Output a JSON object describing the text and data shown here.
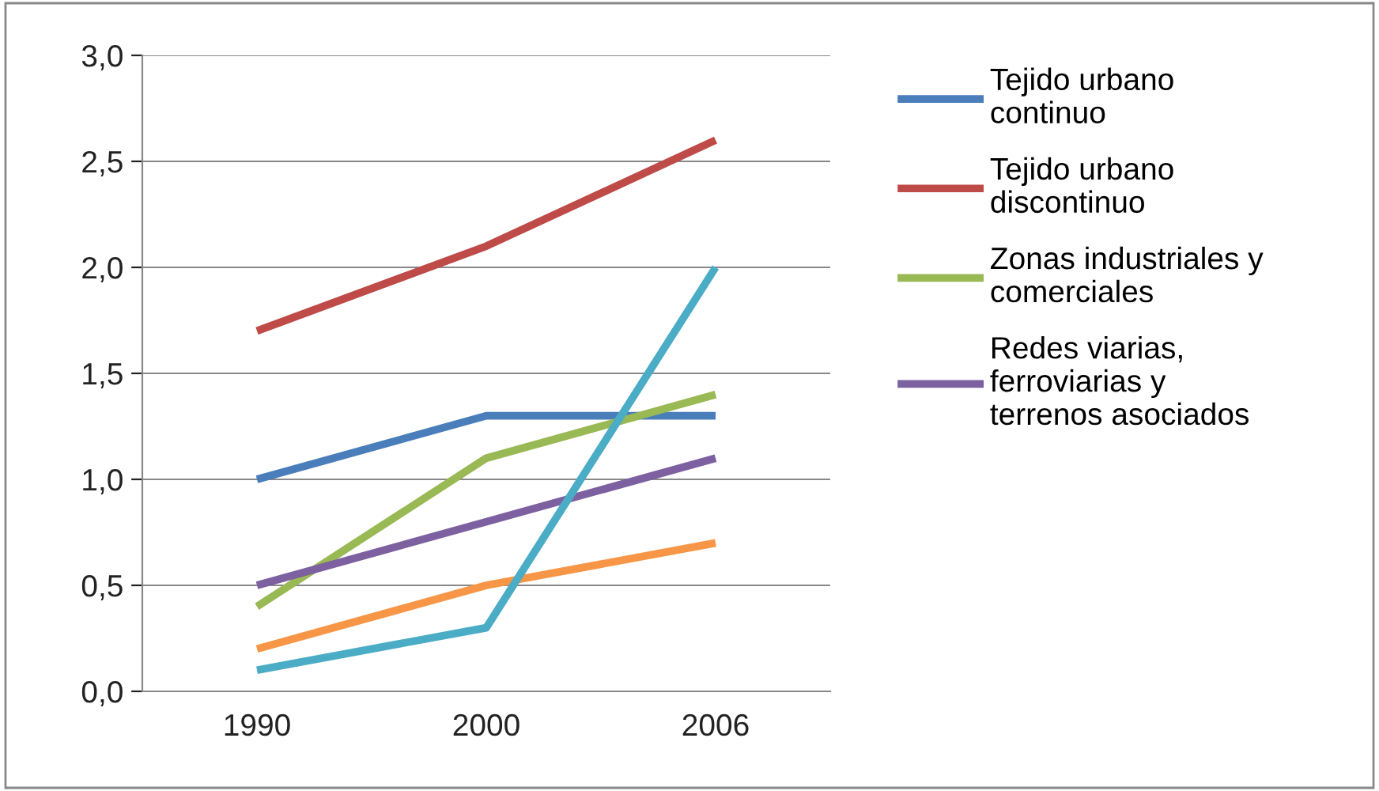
{
  "chart_data": {
    "type": "line",
    "categories": [
      "1990",
      "2000",
      "2006"
    ],
    "series": [
      {
        "name": "Tejido urbano\ncontinuo",
        "color": "#4a7ebb",
        "values": [
          1.0,
          1.3,
          1.3
        ]
      },
      {
        "name": "Tejido urbano\ndiscontinuo",
        "color": "#be4b48",
        "values": [
          1.7,
          2.1,
          2.6
        ]
      },
      {
        "name": "Zonas industriales y\ncomerciales",
        "color": "#98b954",
        "values": [
          0.4,
          1.1,
          1.4
        ]
      },
      {
        "name": "Redes viarias,\nferroviarias y\nterrenos asociados",
        "color": "#7d60a0",
        "values": [
          0.5,
          0.8,
          1.1
        ]
      },
      {
        "color": "#f79646",
        "values": [
          0.2,
          0.5,
          0.7
        ]
      },
      {
        "color": "#4bacc6",
        "values": [
          0.1,
          0.3,
          2.0
        ]
      }
    ],
    "ylim": [
      0,
      3
    ],
    "yticks": [
      {
        "value": 0,
        "label": "0,0"
      },
      {
        "value": 0.5,
        "label": "0,5"
      },
      {
        "value": 1,
        "label": "1,0"
      },
      {
        "value": 1.5,
        "label": "1,5"
      },
      {
        "value": 2,
        "label": "2,0"
      },
      {
        "value": 2.5,
        "label": "2,5"
      },
      {
        "value": 3,
        "label": "3,0"
      }
    ],
    "grid": "y",
    "legend": "right",
    "marker": "none",
    "line_style": "solid"
  }
}
